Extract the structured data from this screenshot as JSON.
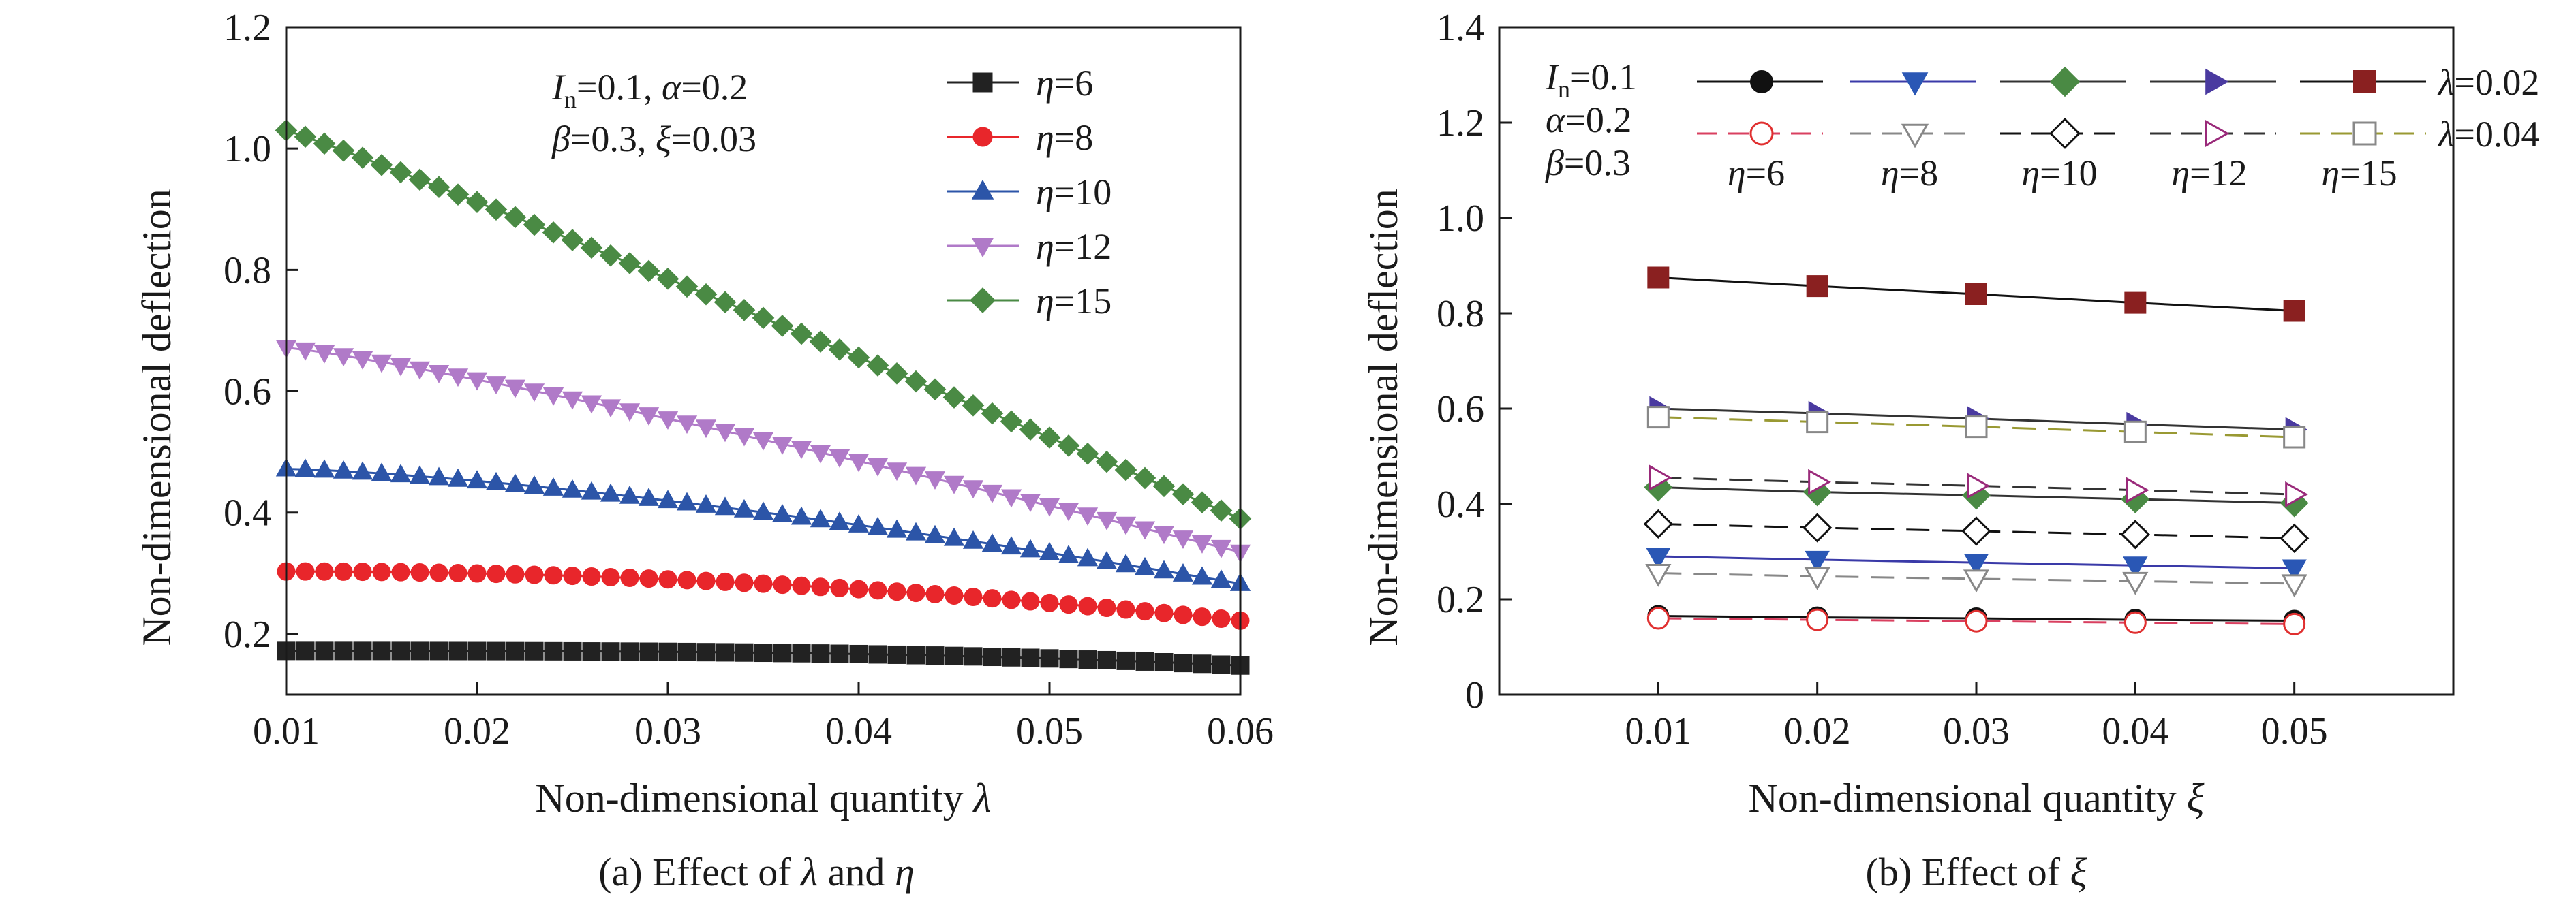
{
  "chart_data": [
    {
      "type": "line",
      "xlabel": "Non-dimensional quantity",
      "xlabel_symbol": "λ",
      "ylabel": "Non-dimensional deflection",
      "caption_prefix": "(a) Effect of",
      "caption_s1": "λ",
      "caption_mid": "and",
      "caption_s2": "η",
      "xlim": [
        0.01,
        0.06
      ],
      "ylim": [
        0.1,
        1.2
      ],
      "xticks": [
        "0.01",
        "0.02",
        "0.03",
        "0.04",
        "0.05",
        "0.06"
      ],
      "yticks": [
        "0.2",
        "0.4",
        "0.6",
        "0.8",
        "1.0",
        "1.2"
      ],
      "legend_position": "top-right",
      "annotation": {
        "I_sym": "I",
        "I_sub": "n",
        "I_val": "=0.1, ",
        "alpha_sym": "α",
        "alpha_val": "=0.2",
        "beta_sym": "β",
        "beta_val": "=0.3, ",
        "xi_sym": "ξ",
        "xi_val": "=0.03"
      },
      "series": [
        {
          "sym": "η",
          "val": "=6",
          "marker": "square",
          "color": "#222222",
          "y0": 0.172,
          "y1": 0.148,
          "k": 3
        },
        {
          "sym": "η",
          "val": "=8",
          "marker": "circle",
          "color": "#e8262b",
          "y0": 0.303,
          "y1": 0.222,
          "k": 2
        },
        {
          "sym": "η",
          "val": "=10",
          "marker": "triangle-up",
          "color": "#2c55a8",
          "y0": 0.472,
          "y1": 0.283,
          "k": 1.4
        },
        {
          "sym": "η",
          "val": "=12",
          "marker": "triangle-down",
          "color": "#b07ac8",
          "y0": 0.672,
          "y1": 0.335,
          "k": 1.15
        },
        {
          "sym": "η",
          "val": "=15",
          "marker": "diamond",
          "color": "#4a8a44",
          "y0": 1.03,
          "y1": 0.39,
          "k": 1.05
        }
      ]
    },
    {
      "type": "line",
      "xlabel": "Non-dimensional quantity",
      "xlabel_symbol": "ξ",
      "ylabel": "Non-dimensional deflection",
      "caption_prefix": "(b) Effect of",
      "caption_s1": "ξ",
      "x": [
        0.01,
        0.02,
        0.03,
        0.04,
        0.05
      ],
      "xlim": [
        0.0,
        0.06
      ],
      "ylim": [
        0,
        1.4
      ],
      "xticks": [
        "0.01",
        "0.02",
        "0.03",
        "0.04",
        "0.05"
      ],
      "yticks": [
        "0",
        "0.2",
        "0.4",
        "0.6",
        "0.8",
        "1.0",
        "1.2",
        "1.4"
      ],
      "legend_position": "top",
      "annotation": {
        "I_sym": "I",
        "I_sub": "n",
        "I_val": "=0.1",
        "alpha_sym": "α",
        "alpha_val": "=0.2",
        "beta_sym": "β",
        "beta_val": "=0.3"
      },
      "lambda_labels": [
        {
          "sym": "λ",
          "val": "=0.02"
        },
        {
          "sym": "λ",
          "val": "=0.04"
        }
      ],
      "eta_labels": [
        {
          "sym": "η",
          "val": "=6"
        },
        {
          "sym": "η",
          "val": "=8"
        },
        {
          "sym": "η",
          "val": "=10"
        },
        {
          "sym": "η",
          "val": "=12"
        },
        {
          "sym": "η",
          "val": "=15"
        }
      ],
      "series": [
        {
          "name_ref": "η=6, λ=0.02",
          "marker": "circle",
          "filled": true,
          "color": "#111111",
          "line": "#111111",
          "dashed": false,
          "values": [
            0.165,
            0.162,
            0.16,
            0.157,
            0.155
          ]
        },
        {
          "name_ref": "η=8, λ=0.02",
          "marker": "triangle-down",
          "filled": true,
          "color": "#2a57b5",
          "line": "#3a3aa8",
          "dashed": false,
          "values": [
            0.29,
            0.283,
            0.277,
            0.271,
            0.265
          ]
        },
        {
          "name_ref": "η=10, λ=0.02",
          "marker": "diamond",
          "filled": true,
          "color": "#4a8a44",
          "line": "#333333",
          "dashed": false,
          "values": [
            0.435,
            0.425,
            0.418,
            0.41,
            0.402
          ]
        },
        {
          "name_ref": "η=12, λ=0.02",
          "marker": "triangle-right",
          "filled": true,
          "color": "#4a3aa0",
          "line": "#333333",
          "dashed": false,
          "values": [
            0.6,
            0.59,
            0.579,
            0.567,
            0.556
          ]
        },
        {
          "name_ref": "η=15, λ=0.02",
          "marker": "square",
          "filled": true,
          "color": "#8a2020",
          "line": "#111111",
          "dashed": false,
          "values": [
            0.875,
            0.857,
            0.84,
            0.822,
            0.805
          ]
        },
        {
          "name_ref": "η=6, λ=0.04",
          "marker": "circle",
          "filled": false,
          "color": "#e03030",
          "line": "#d94060",
          "dashed": true,
          "values": [
            0.16,
            0.157,
            0.154,
            0.151,
            0.148
          ]
        },
        {
          "name_ref": "η=8, λ=0.04",
          "marker": "triangle-down",
          "filled": false,
          "color": "#888888",
          "line": "#888888",
          "dashed": true,
          "values": [
            0.255,
            0.248,
            0.243,
            0.238,
            0.233
          ]
        },
        {
          "name_ref": "η=10, λ=0.04",
          "marker": "diamond",
          "filled": false,
          "color": "#111111",
          "line": "#111111",
          "dashed": true,
          "values": [
            0.358,
            0.35,
            0.343,
            0.336,
            0.328
          ]
        },
        {
          "name_ref": "η=12, λ=0.04",
          "marker": "triangle-right",
          "filled": false,
          "color": "#9a2a7a",
          "line": "#333333",
          "dashed": true,
          "values": [
            0.455,
            0.446,
            0.438,
            0.429,
            0.42
          ]
        },
        {
          "name_ref": "η=15, λ=0.04",
          "marker": "square",
          "filled": false,
          "color": "#888888",
          "line": "#999933",
          "dashed": true,
          "values": [
            0.582,
            0.572,
            0.562,
            0.551,
            0.54
          ]
        }
      ]
    }
  ]
}
